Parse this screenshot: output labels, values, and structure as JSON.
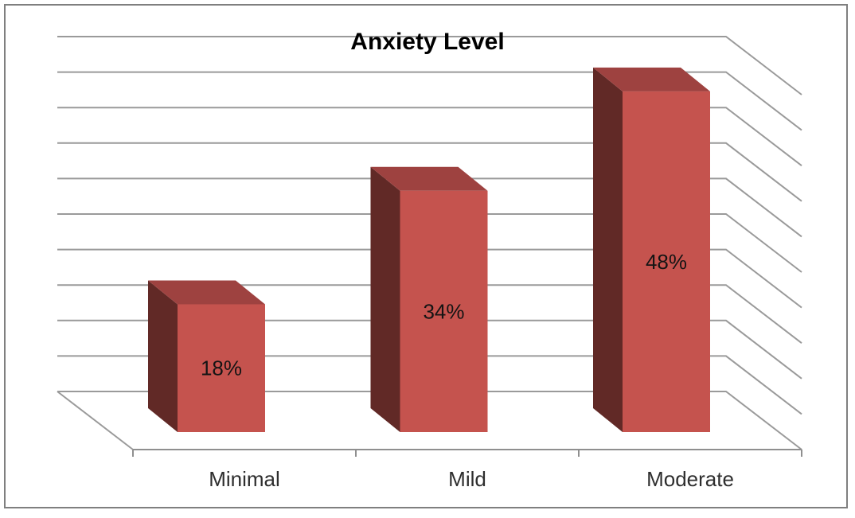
{
  "window": {
    "background": "#ffffff",
    "border_color": "#7f7f7f"
  },
  "chart_data": {
    "type": "bar",
    "variant": "3d-clustered-column",
    "title": "Anxiety Level",
    "categories": [
      "Minimal",
      "Mild",
      "Moderate"
    ],
    "values": [
      18,
      34,
      48
    ],
    "data_labels": [
      "18%",
      "34%",
      "48%"
    ],
    "xlabel": "",
    "ylabel": "",
    "ylim": [
      0,
      50
    ],
    "gridline_step": 5,
    "value_axis_labels_visible": false,
    "grid": "on",
    "legend": "none",
    "colors": {
      "bar_front": "#C5534E",
      "bar_top": "#9E4240",
      "bar_side": "#612想926",
      "bar_side_solid": "#612926",
      "gridline": "#9A9A9A",
      "axis": "#8F8F8F",
      "title_text": "#000000",
      "category_text": "#2E2E2E",
      "data_label_text": "#141414"
    }
  }
}
